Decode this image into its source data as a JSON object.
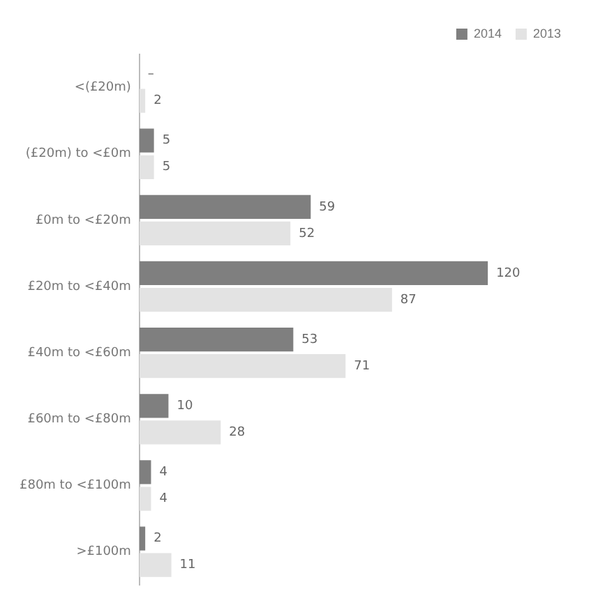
{
  "chart_data": {
    "type": "bar",
    "orientation": "horizontal",
    "categories": [
      "<(£20m)",
      "(£20m) to <£0m",
      "£0m to <£20m",
      "£20m to <£40m",
      "£40m to <£60m",
      "£60m to <£80m",
      "£80m to <£100m",
      ">£100m"
    ],
    "series": [
      {
        "name": "2014",
        "color": "#7f7f7f",
        "values": [
          null,
          5,
          59,
          120,
          53,
          10,
          4,
          2
        ],
        "value_labels": [
          "–",
          "5",
          "59",
          "120",
          "53",
          "10",
          "4",
          "2"
        ]
      },
      {
        "name": "2013",
        "color": "#e3e3e3",
        "values": [
          2,
          5,
          52,
          87,
          71,
          28,
          4,
          11
        ],
        "value_labels": [
          "2",
          "5",
          "52",
          "87",
          "71",
          "28",
          "4",
          "11"
        ]
      }
    ],
    "legend": "top right",
    "grid": false
  }
}
